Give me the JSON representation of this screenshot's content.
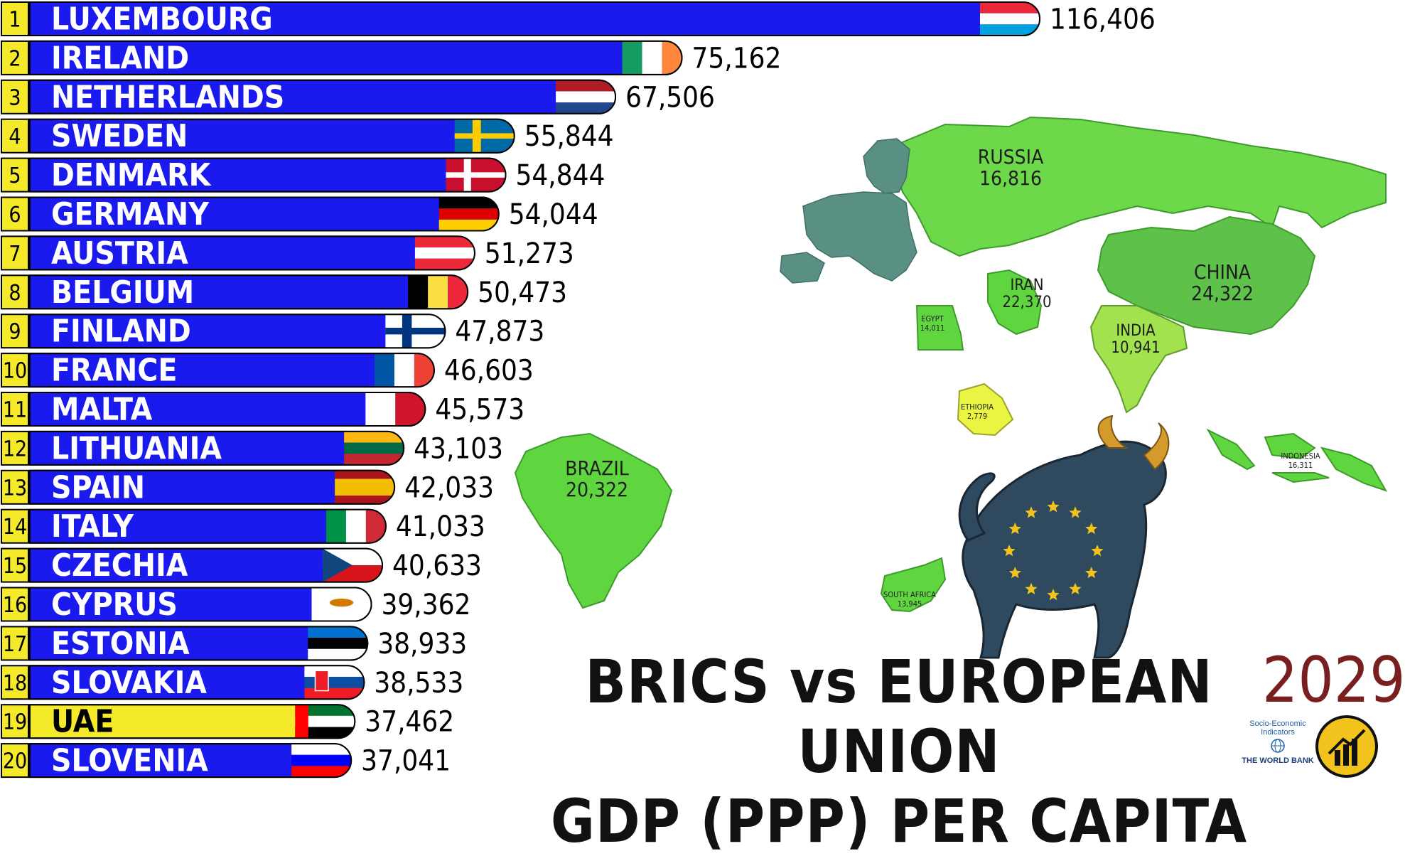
{
  "chart_data": {
    "type": "bar",
    "orientation": "horizontal",
    "title": "BRICS vs EUROPEAN UNION GDP (PPP) PER CAPITA",
    "year": "2029",
    "ranks": [
      "1",
      "2",
      "3",
      "4",
      "5",
      "6",
      "7",
      "8",
      "9",
      "10",
      "11",
      "12",
      "13",
      "14",
      "15",
      "16",
      "17",
      "18",
      "19",
      "20"
    ],
    "categories": [
      "LUXEMBOURG",
      "IRELAND",
      "NETHERLANDS",
      "SWEDEN",
      "DENMARK",
      "GERMANY",
      "AUSTRIA",
      "BELGIUM",
      "FINLAND",
      "FRANCE",
      "MALTA",
      "LITHUANIA",
      "SPAIN",
      "ITALY",
      "CZECHIA",
      "CYPRUS",
      "ESTONIA",
      "SLOVAKIA",
      "UAE",
      "SLOVENIA"
    ],
    "values": [
      116406,
      75162,
      67506,
      55844,
      54844,
      54044,
      51273,
      50473,
      47873,
      46603,
      45573,
      43103,
      42033,
      41033,
      40633,
      39362,
      38933,
      38533,
      37462,
      37041
    ],
    "value_labels": [
      "116,406",
      "75,162",
      "67,506",
      "55,844",
      "54,844",
      "54,044",
      "51,273",
      "50,473",
      "47,873",
      "46,603",
      "45,573",
      "43,103",
      "42,033",
      "41,033",
      "40,633",
      "39,362",
      "38,933",
      "38,533",
      "37,462",
      "37,041"
    ],
    "bar_colors": [
      "#1a1aef",
      "#1a1aef",
      "#1a1aef",
      "#1a1aef",
      "#1a1aef",
      "#1a1aef",
      "#1a1aef",
      "#1a1aef",
      "#1a1aef",
      "#1a1aef",
      "#1a1aef",
      "#1a1aef",
      "#1a1aef",
      "#1a1aef",
      "#1a1aef",
      "#1a1aef",
      "#1a1aef",
      "#1a1aef",
      "#f4ea2a",
      "#1a1aef"
    ],
    "flags": [
      "luxembourg",
      "ireland",
      "netherlands",
      "sweden",
      "denmark",
      "germany",
      "austria",
      "belgium",
      "finland",
      "france",
      "malta",
      "lithuania",
      "spain",
      "italy",
      "czechia",
      "cyprus",
      "estonia",
      "slovakia",
      "uae",
      "slovenia"
    ]
  },
  "map": {
    "labels": [
      {
        "name": "RUSSIA",
        "value": "16,816"
      },
      {
        "name": "CHINA",
        "value": "24,322"
      },
      {
        "name": "IRAN",
        "value": "22,370"
      },
      {
        "name": "INDIA",
        "value": "10,941"
      },
      {
        "name": "BRAZIL",
        "value": "20,322"
      },
      {
        "name": "ETHIOPIA",
        "value": "2,779"
      },
      {
        "name": "INDONESIA",
        "value": "16,311"
      },
      {
        "name": "EGYPT",
        "value": "14,011"
      },
      {
        "name": "SOUTH AFRICA",
        "value": "13,945"
      }
    ]
  },
  "colors": {
    "bar": "#1a1aef",
    "highlight_bar": "#f4ea2a",
    "rank_box": "#f4ea2a",
    "year": "#7a1f1f",
    "brics_green": "#5fd63f",
    "eu_teal": "#5a8f83"
  },
  "title_lines": [
    "BRICS vs EUROPEAN UNION",
    "GDP (PPP) PER CAPITA"
  ],
  "branding": {
    "source_line1": "Socio-Economic",
    "source_line2": "Indicators",
    "source_name": "THE WORLD BANK"
  }
}
